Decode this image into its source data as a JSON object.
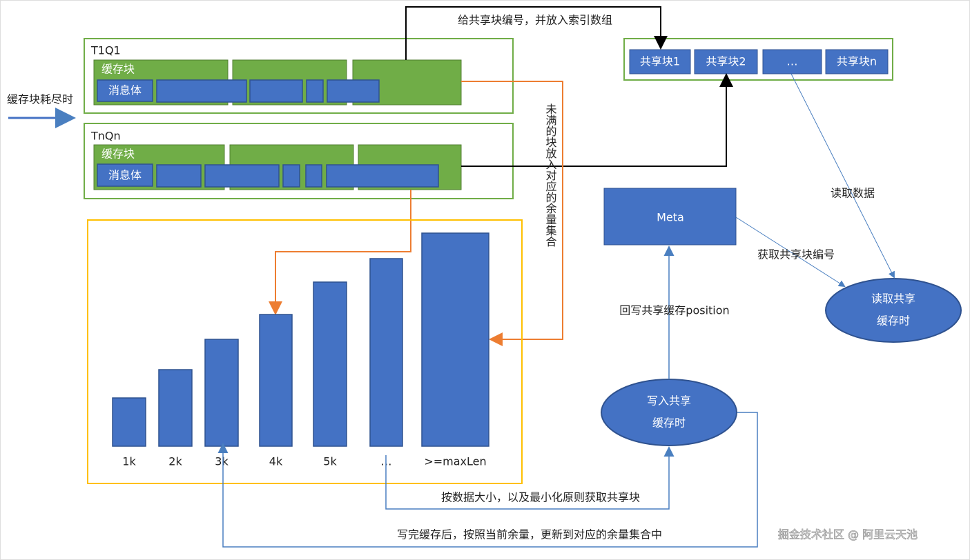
{
  "input_label": "缓存块耗尽时",
  "queues": [
    {
      "name": "T1Q1",
      "block_label": "缓存块",
      "message_label": "消息体"
    },
    {
      "name": "TnQn",
      "block_label": "缓存块",
      "message_label": "消息体"
    }
  ],
  "shared_blocks": [
    "共享块1",
    "共享块2",
    "…",
    "共享块n"
  ],
  "number_edge_label": "给共享块编号，并放入索引数组",
  "vertical_label": "未满的块放入对应的余量集合",
  "buckets": [
    "1k",
    "2k",
    "3k",
    "4k",
    "5k",
    "…",
    ">=maxLen"
  ],
  "meta": "Meta",
  "read_node": [
    "读取共享",
    "缓存时"
  ],
  "write_node": [
    "写入共享",
    "缓存时"
  ],
  "read_data_label": "读取数据",
  "get_number_label": "获取共享块编号",
  "write_back_label": "回写共享缓存position",
  "acquire_label": "按数据大小，以及最小化原则获取共享块",
  "update_label": "写完缓存后，按照当前余量，更新到对应的余量集合中",
  "watermark": "掘金技术社区 @ 阿里云天池"
}
